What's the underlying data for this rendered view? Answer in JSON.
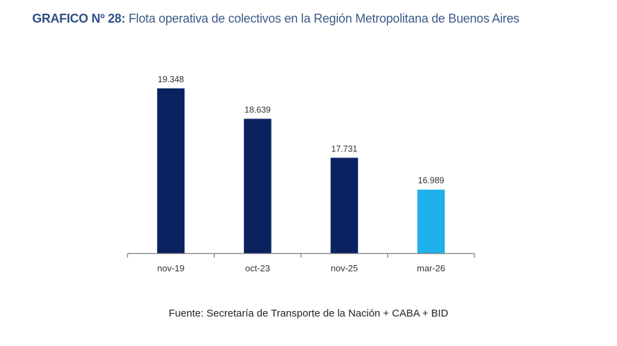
{
  "header": {
    "title_prefix": "GRAFICO Nº 28:",
    "title": "Flota operativa de colectivos en la Región Metropolitana de Buenos Aires"
  },
  "chart_data": {
    "type": "bar",
    "categories": [
      "nov-19",
      "oct-23",
      "nov-25",
      "mar-26"
    ],
    "values": [
      19348,
      18639,
      17731,
      16989
    ],
    "data_labels": [
      "19.348",
      "18.639",
      "17.731",
      "16.989"
    ],
    "colors": [
      "#0b2260",
      "#0b2260",
      "#0b2260",
      "#1fb1ea"
    ],
    "title": "GRAFICO Nº 28: Flota operativa de colectivos en la Región Metropolitana de Buenos Aires",
    "xlabel": "",
    "ylabel": "",
    "ylim": [
      15500,
      19348
    ],
    "grid": false,
    "legend": "none"
  },
  "footer": {
    "source": "Fuente: Secretaría de Transporte de la Nación + CABA + BID"
  }
}
